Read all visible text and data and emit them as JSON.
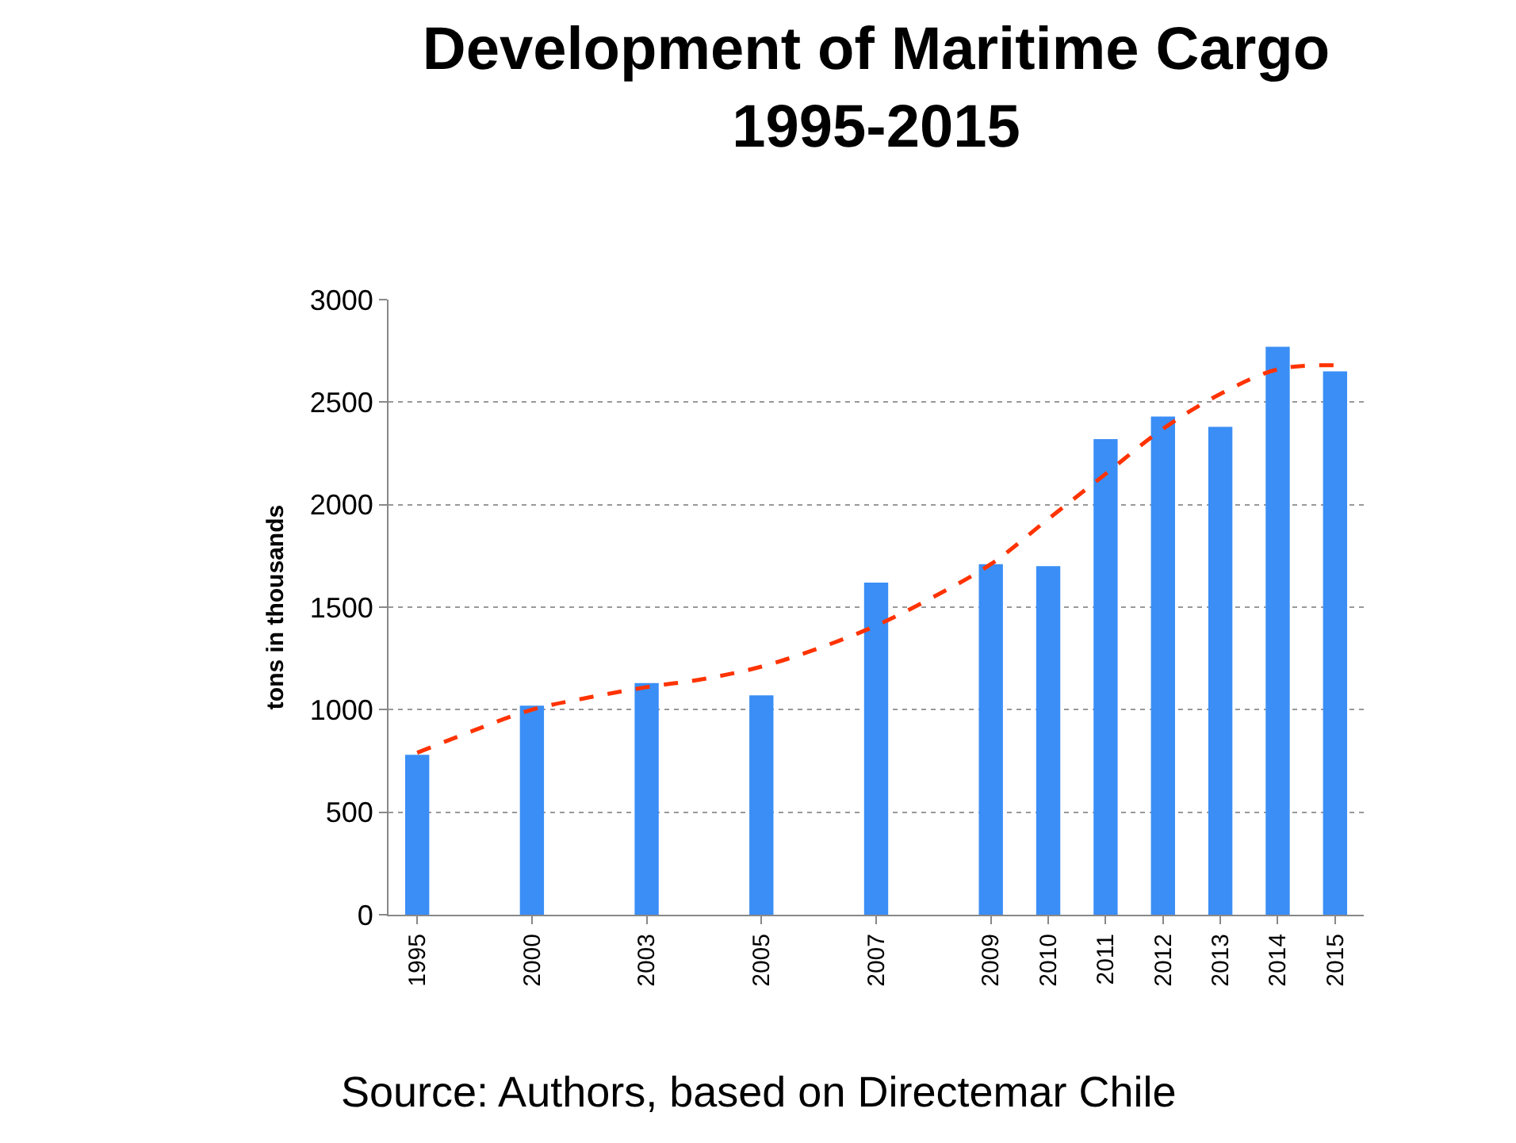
{
  "chart_data": {
    "type": "bar",
    "title": "Development of Maritime Cargo\n1995-2015",
    "ylabel": "tons in thousands",
    "categories": [
      "1995",
      null,
      "2000",
      null,
      "2003",
      null,
      "2005",
      null,
      "2007",
      null,
      "2009",
      "2010",
      "2011",
      "2012",
      "2013",
      "2014",
      "2015"
    ],
    "series": [
      {
        "color": "#3a8ef6",
        "values": [
          780,
          null,
          1020,
          null,
          1130,
          null,
          1070,
          null,
          1620,
          null,
          1710,
          1700,
          2320,
          2430,
          2380,
          2770,
          2650
        ]
      },
      {
        "type": "line",
        "color": "#ff3300",
        "line_style": "dashed",
        "marker": "none",
        "values": [
          790,
          900,
          1000,
          1060,
          1110,
          1150,
          1210,
          1300,
          1410,
          1550,
          1710,
          1930,
          2150,
          2370,
          2540,
          2660,
          2680
        ]
      }
    ],
    "ylim": [
      0,
      3000
    ],
    "yticks": [
      0,
      500,
      1000,
      1500,
      2000,
      2500,
      3000
    ],
    "grid": "y",
    "annotations": [
      "Source: Authors, based on Directemar Chile"
    ]
  }
}
